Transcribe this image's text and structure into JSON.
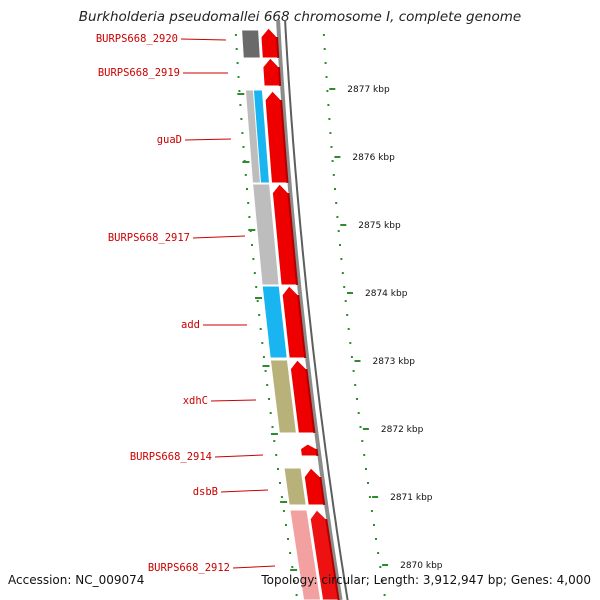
{
  "title": "Burkholderia pseudomallei 668 chromosome I, complete genome",
  "footer": {
    "accession": "Accession: NC_009074",
    "topology": "Topology: circular; Length: 3,912,947 bp; Genes: 4,000"
  },
  "colors": {
    "gene_label": "#cc0000",
    "tick": "#2e8b2e",
    "cds_forward": "#ee0000",
    "cds_forward_light": "#f08a8a",
    "backbone": "#888888",
    "feature_dark_gray": "#6a6a6a",
    "feature_light_gray": "#bdbdbd",
    "feature_blue": "#19b5f0",
    "feature_khaki": "#b8b27a",
    "feature_pink": "#f2a0a0"
  },
  "gene_labels": [
    "BURPS668_2920",
    "BURPS668_2919",
    "guaD",
    "BURPS668_2917",
    "add",
    "xdhC",
    "BURPS668_2914",
    "dsbB",
    "BURPS668_2912"
  ],
  "scale_labels": [
    "2877 kbp",
    "2876 kbp",
    "2875 kbp",
    "2874 kbp",
    "2873 kbp",
    "2872 kbp",
    "2871 kbp",
    "2870 kbp"
  ]
}
